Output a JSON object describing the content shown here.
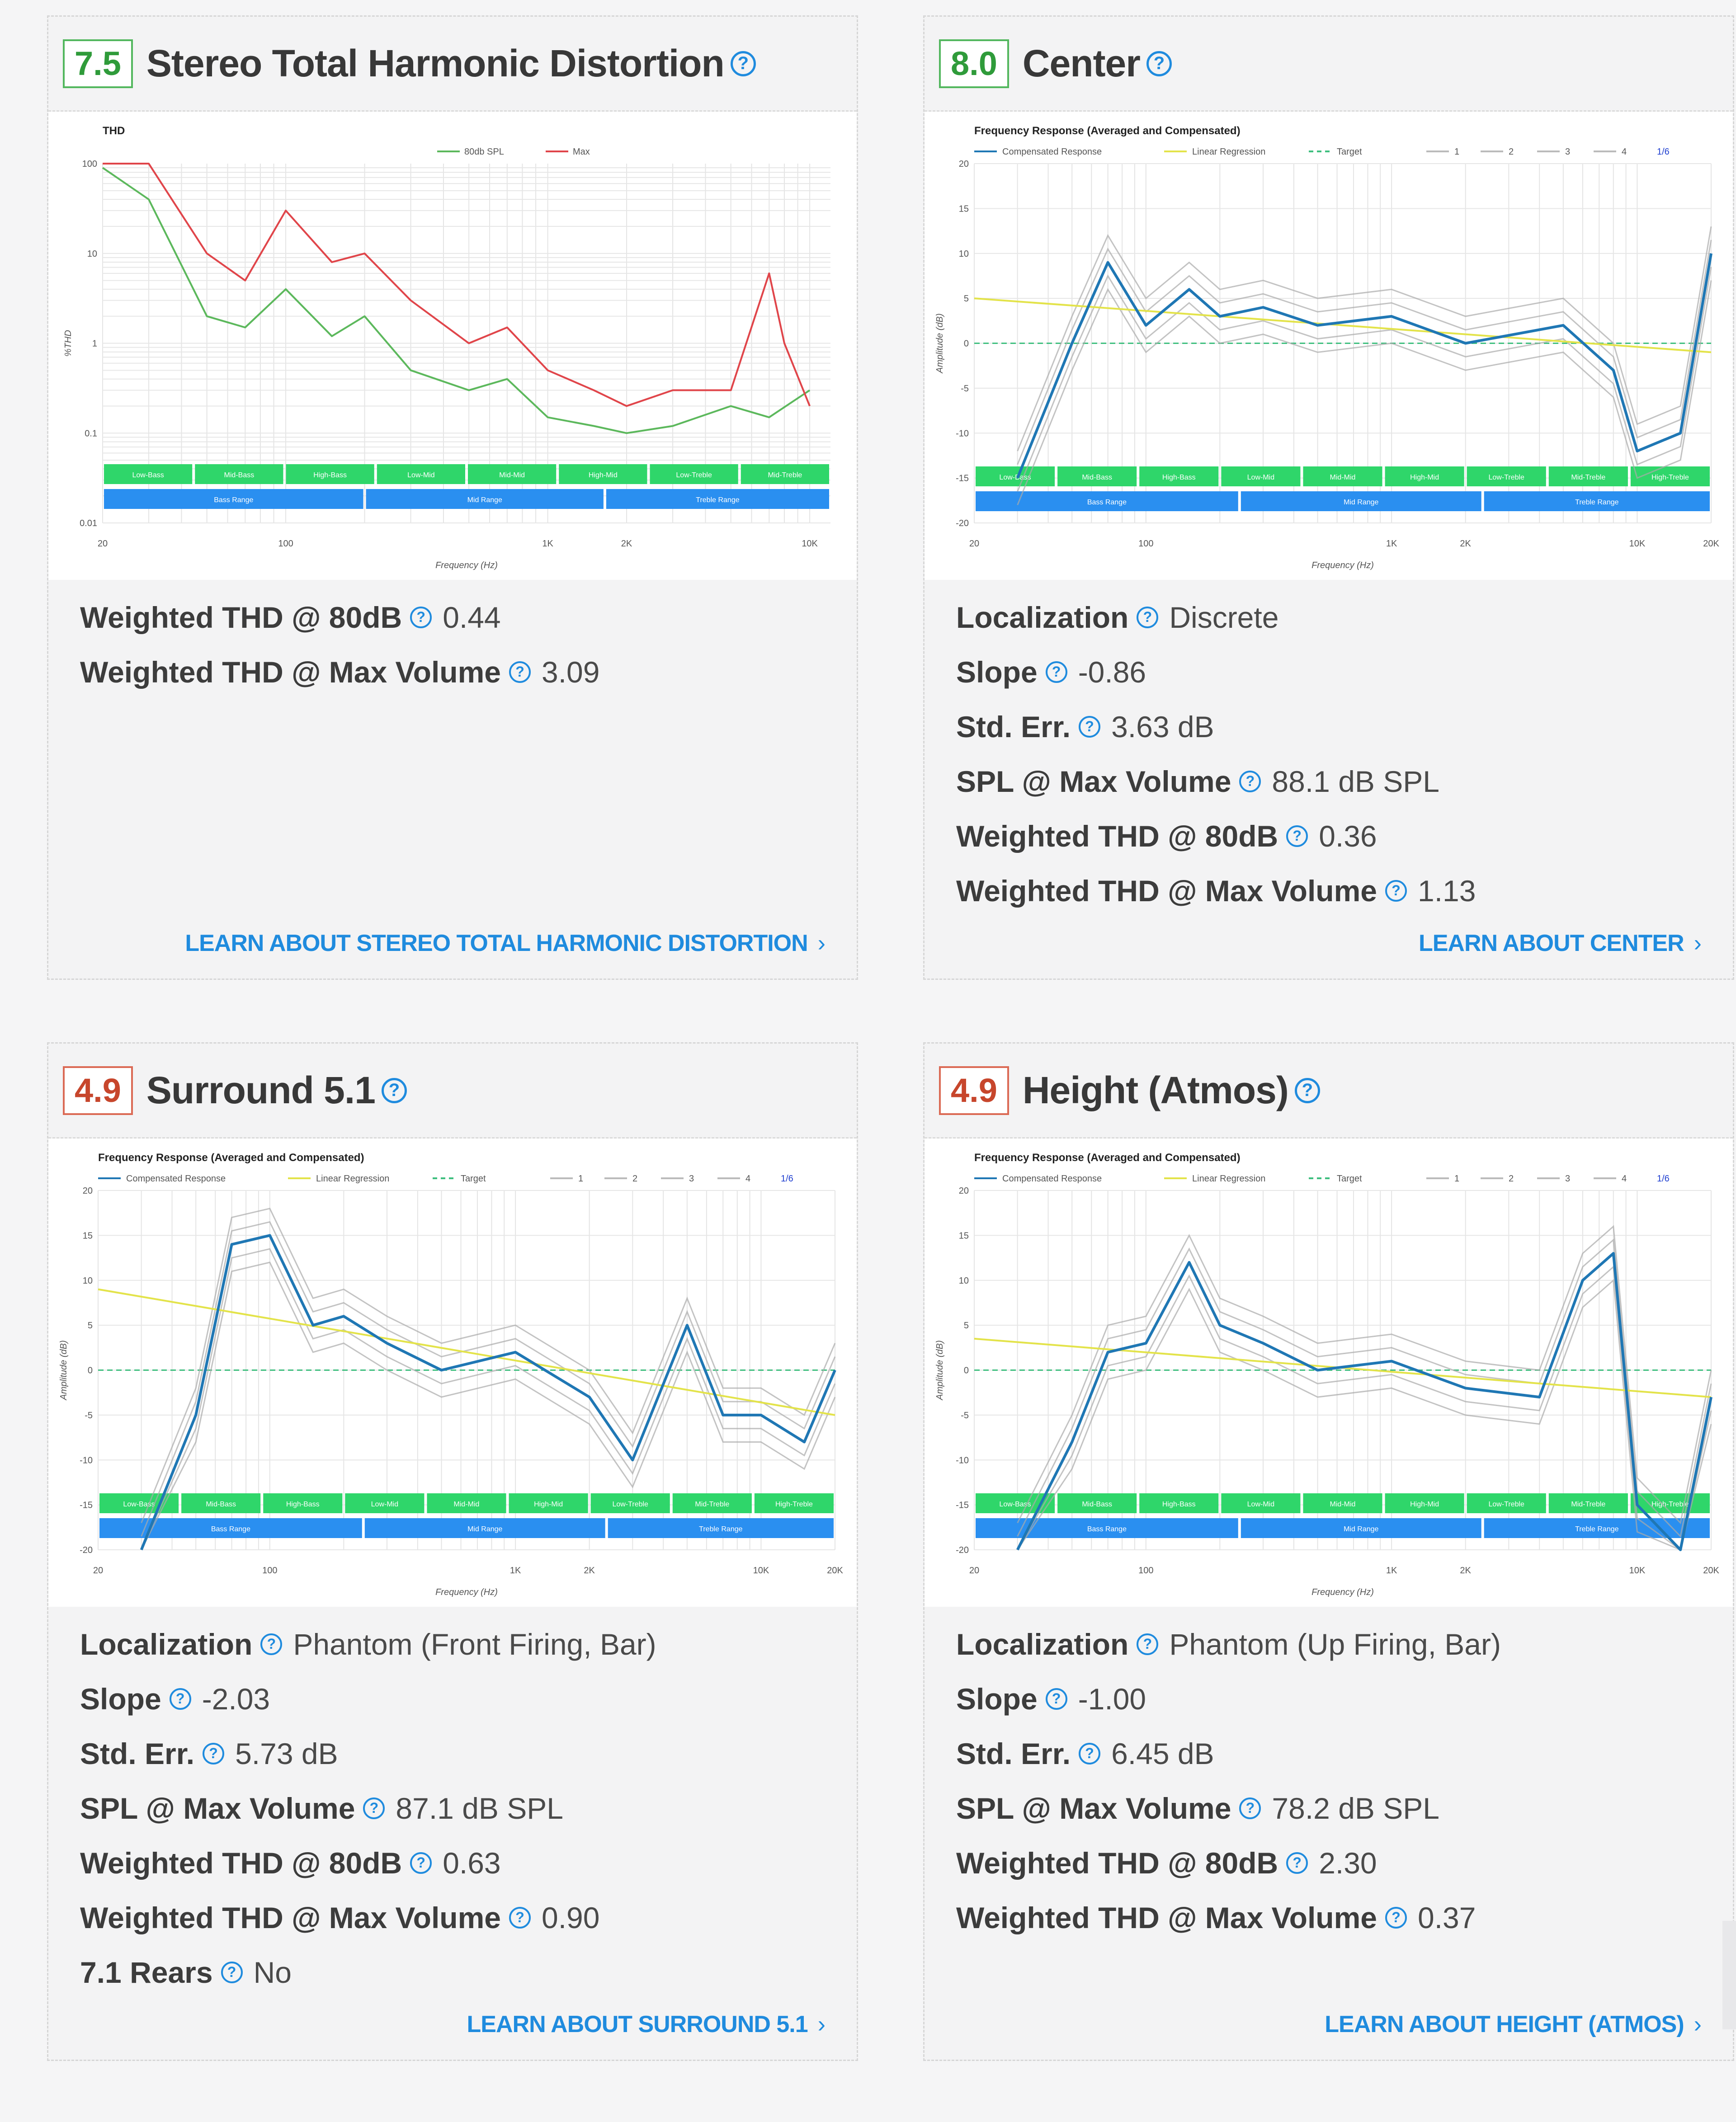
{
  "cards": [
    {
      "score": "7.5",
      "title": "Stereo Total Harmonic Distortion",
      "rows": [
        {
          "label": "Weighted THD @ 80dB",
          "value": "0.44"
        },
        {
          "label": "Weighted THD @ Max Volume",
          "value": "3.09"
        }
      ],
      "learn": "LEARN ABOUT STEREO TOTAL HARMONIC DISTORTION"
    },
    {
      "score": "8.0",
      "title": "Center",
      "rows": [
        {
          "label": "Localization",
          "value": "Discrete"
        },
        {
          "label": "Slope",
          "value": "-0.86"
        },
        {
          "label": "Std. Err.",
          "value": "3.63 dB"
        },
        {
          "label": "SPL @ Max Volume",
          "value": "88.1 dB SPL"
        },
        {
          "label": "Weighted THD @ 80dB",
          "value": "0.36"
        },
        {
          "label": "Weighted THD @ Max Volume",
          "value": "1.13"
        }
      ],
      "learn": "LEARN ABOUT CENTER"
    },
    {
      "score": "4.9",
      "title": "Surround 5.1",
      "rows": [
        {
          "label": "Localization",
          "value": "Phantom (Front Firing, Bar)"
        },
        {
          "label": "Slope",
          "value": "-2.03"
        },
        {
          "label": "Std. Err.",
          "value": "5.73 dB"
        },
        {
          "label": "SPL @ Max Volume",
          "value": "87.1 dB SPL"
        },
        {
          "label": "Weighted THD @ 80dB",
          "value": "0.63"
        },
        {
          "label": "Weighted THD @ Max Volume",
          "value": "0.90"
        },
        {
          "label": "7.1 Rears",
          "value": "No"
        }
      ],
      "learn": "LEARN ABOUT SURROUND 5.1"
    },
    {
      "score": "4.9",
      "title": "Height (Atmos)",
      "rows": [
        {
          "label": "Localization",
          "value": "Phantom (Up Firing, Bar)"
        },
        {
          "label": "Slope",
          "value": "-1.00"
        },
        {
          "label": "Std. Err.",
          "value": "6.45 dB"
        },
        {
          "label": "SPL @ Max Volume",
          "value": "78.2 dB SPL"
        },
        {
          "label": "Weighted THD @ 80dB",
          "value": "2.30"
        },
        {
          "label": "Weighted THD @ Max Volume",
          "value": "0.37"
        }
      ],
      "learn": "LEARN ABOUT HEIGHT (ATMOS)"
    }
  ],
  "help_glyph": "?",
  "chevron_glyph": "›",
  "colors": {
    "accent": "#1f8bde",
    "good": "#2f9b3a",
    "bad": "#c7462c",
    "thd_80db": "#5cb85c",
    "thd_max": "#e0454a",
    "fr_compensated": "#1f77b4",
    "fr_regression": "#e3e34a",
    "fr_target": "#3fbf7f",
    "band_green": "#2fd66a",
    "band_blue": "#2a8ff0"
  },
  "chart_data": [
    {
      "type": "line",
      "title": "THD",
      "xlabel": "Frequency (Hz)",
      "ylabel": "%THD",
      "x_ticks": [
        "20",
        "100",
        "1K",
        "2K",
        "10K"
      ],
      "y_ticks": [
        "100",
        "10",
        "1",
        "0.1",
        "0.01"
      ],
      "y_scale": "log",
      "ylim": [
        0.01,
        100
      ],
      "legend": [
        "80db SPL",
        "Max"
      ],
      "bands_top": [
        "Low-Bass",
        "Mid-Bass",
        "High-Bass",
        "Low-Mid",
        "Mid-Mid",
        "High-Mid",
        "Low-Treble",
        "Mid-Treble"
      ],
      "bands_bottom": [
        "Bass Range",
        "Mid Range",
        "Treble Range"
      ],
      "series": [
        {
          "name": "80db SPL",
          "color": "#5cb85c",
          "x": [
            20,
            30,
            50,
            70,
            100,
            150,
            200,
            300,
            500,
            700,
            1000,
            1500,
            2000,
            3000,
            5000,
            7000,
            10000
          ],
          "y": [
            90,
            40,
            2,
            1.5,
            4,
            1.2,
            2,
            0.5,
            0.3,
            0.4,
            0.15,
            0.12,
            0.1,
            0.12,
            0.2,
            0.15,
            0.3
          ]
        },
        {
          "name": "Max",
          "color": "#e0454a",
          "x": [
            20,
            30,
            50,
            70,
            100,
            150,
            200,
            300,
            500,
            700,
            1000,
            1500,
            2000,
            3000,
            5000,
            7000,
            8000,
            10000
          ],
          "y": [
            100,
            100,
            10,
            5,
            30,
            8,
            10,
            3,
            1,
            1.5,
            0.5,
            0.3,
            0.2,
            0.3,
            0.3,
            6,
            1,
            0.2
          ]
        }
      ]
    },
    {
      "type": "line",
      "title": "Frequency Response (Averaged and Compensated)",
      "xlabel": "Frequency (Hz)",
      "ylabel": "Amplitude (dB)",
      "x_ticks": [
        "20",
        "100",
        "1K",
        "2K",
        "10K",
        "20K"
      ],
      "y_ticks": [
        "20",
        "15",
        "10",
        "5",
        "0",
        "-5",
        "-10",
        "-15",
        "-20"
      ],
      "ylim": [
        -20,
        20
      ],
      "legend": [
        "Compensated Response",
        "Linear Regression",
        "Target",
        "1",
        "2",
        "3",
        "4",
        "1/6"
      ],
      "bands_top": [
        "Low-Bass",
        "Mid-Bass",
        "High-Bass",
        "Low-Mid",
        "Mid-Mid",
        "High-Mid",
        "Low-Treble",
        "Mid-Treble",
        "High-Treble"
      ],
      "bands_bottom": [
        "Bass Range",
        "Mid Range",
        "Treble Range"
      ],
      "series": [
        {
          "name": "Compensated Response",
          "x": [
            30,
            50,
            70,
            100,
            150,
            200,
            300,
            500,
            1000,
            2000,
            5000,
            8000,
            10000,
            15000,
            20000
          ],
          "y": [
            -15,
            0,
            9,
            2,
            6,
            3,
            4,
            2,
            3,
            0,
            2,
            -3,
            -12,
            -10,
            10
          ]
        },
        {
          "name": "Linear Regression",
          "x": [
            20,
            20000
          ],
          "y": [
            5,
            -1
          ]
        }
      ]
    },
    {
      "type": "line",
      "title": "Frequency Response (Averaged and Compensated)",
      "xlabel": "Frequency (Hz)",
      "ylabel": "Amplitude (dB)",
      "x_ticks": [
        "20",
        "100",
        "1K",
        "2K",
        "10K",
        "20K"
      ],
      "y_ticks": [
        "20",
        "15",
        "10",
        "5",
        "0",
        "-5",
        "-10",
        "-15",
        "-20"
      ],
      "ylim": [
        -20,
        20
      ],
      "legend": [
        "Compensated Response",
        "Linear Regression",
        "Target",
        "1",
        "2",
        "3",
        "4",
        "1/6"
      ],
      "bands_top": [
        "Low-Bass",
        "Mid-Bass",
        "High-Bass",
        "Low-Mid",
        "Mid-Mid",
        "High-Mid",
        "Low-Treble",
        "Mid-Treble",
        "High-Treble"
      ],
      "bands_bottom": [
        "Bass Range",
        "Mid Range",
        "Treble Range"
      ],
      "series": [
        {
          "name": "Compensated Response",
          "x": [
            30,
            50,
            70,
            100,
            150,
            200,
            300,
            500,
            1000,
            2000,
            3000,
            5000,
            7000,
            10000,
            15000,
            20000
          ],
          "y": [
            -20,
            -5,
            14,
            15,
            5,
            6,
            3,
            0,
            2,
            -3,
            -10,
            5,
            -5,
            -5,
            -8,
            0
          ]
        },
        {
          "name": "Linear Regression",
          "x": [
            20,
            20000
          ],
          "y": [
            9,
            -5
          ]
        }
      ]
    },
    {
      "type": "line",
      "title": "Frequency Response (Averaged and Compensated)",
      "xlabel": "Frequency (Hz)",
      "ylabel": "Amplitude (dB)",
      "x_ticks": [
        "20",
        "100",
        "1K",
        "2K",
        "10K",
        "20K"
      ],
      "y_ticks": [
        "20",
        "15",
        "10",
        "5",
        "0",
        "-5",
        "-10",
        "-15",
        "-20"
      ],
      "ylim": [
        -20,
        20
      ],
      "legend": [
        "Compensated Response",
        "Linear Regression",
        "Target",
        "1",
        "2",
        "3",
        "4",
        "1/6"
      ],
      "bands_top": [
        "Low-Bass",
        "Mid-Bass",
        "High-Bass",
        "Low-Mid",
        "Mid-Mid",
        "High-Mid",
        "Low-Treble",
        "Mid-Treble",
        "High-Treble"
      ],
      "bands_bottom": [
        "Bass Range",
        "Mid Range",
        "Treble Range"
      ],
      "series": [
        {
          "name": "Compensated Response",
          "x": [
            30,
            50,
            70,
            100,
            150,
            200,
            300,
            500,
            1000,
            2000,
            4000,
            6000,
            8000,
            10000,
            15000,
            20000
          ],
          "y": [
            -20,
            -8,
            2,
            3,
            12,
            5,
            3,
            0,
            1,
            -2,
            -3,
            10,
            13,
            -15,
            -20,
            -3
          ]
        },
        {
          "name": "Linear Regression",
          "x": [
            20,
            20000
          ],
          "y": [
            3.5,
            -3
          ]
        }
      ]
    }
  ]
}
